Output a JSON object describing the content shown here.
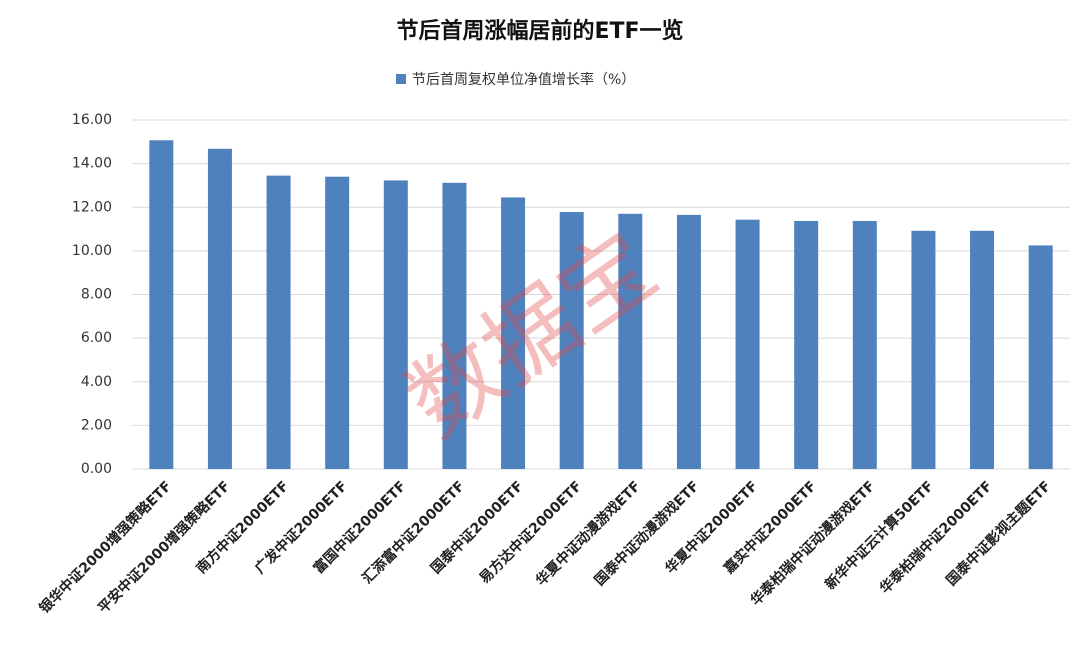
{
  "chart_data": {
    "type": "bar",
    "title": "节后首周涨幅居前的ETF一览",
    "categories": [
      "银华中证2000增强策略ETF",
      "平安中证2000增强策略ETF",
      "南方中证2000ETF",
      "广发中证2000ETF",
      "富国中证2000ETF",
      "汇添富中证2000ETF",
      "国泰中证2000ETF",
      "易方达中证2000ETF",
      "华夏中证动漫游戏ETF",
      "国泰中证动漫游戏ETF",
      "华夏中证2000ETF",
      "嘉实中证2000ETF",
      "华泰柏瑞中证动漫游戏ETF",
      "新华中证云计算50ETF",
      "华泰柏瑞中证2000ETF",
      "国泰中证影视主题ETF"
    ],
    "series": [
      {
        "name": "节后首周复权单位净值增长率（%）",
        "color": "#4f81bd",
        "values": [
          15.07,
          14.68,
          13.45,
          13.4,
          13.23,
          13.12,
          12.45,
          11.78,
          11.7,
          11.65,
          11.43,
          11.37,
          11.37,
          10.92,
          10.92,
          10.25
        ]
      }
    ],
    "ylim": [
      0,
      16
    ],
    "yticks": [
      {
        "value": 0,
        "label": "0.00"
      },
      {
        "value": 2,
        "label": "2.00"
      },
      {
        "value": 4,
        "label": "4.00"
      },
      {
        "value": 6,
        "label": "6.00"
      },
      {
        "value": 8,
        "label": "8.00"
      },
      {
        "value": 10,
        "label": "10.00"
      },
      {
        "value": 12,
        "label": "12.00"
      },
      {
        "value": 14,
        "label": "14.00"
      },
      {
        "value": 16,
        "label": "16.00"
      }
    ],
    "grid": true,
    "legend": "top",
    "watermark": "数据宝"
  }
}
